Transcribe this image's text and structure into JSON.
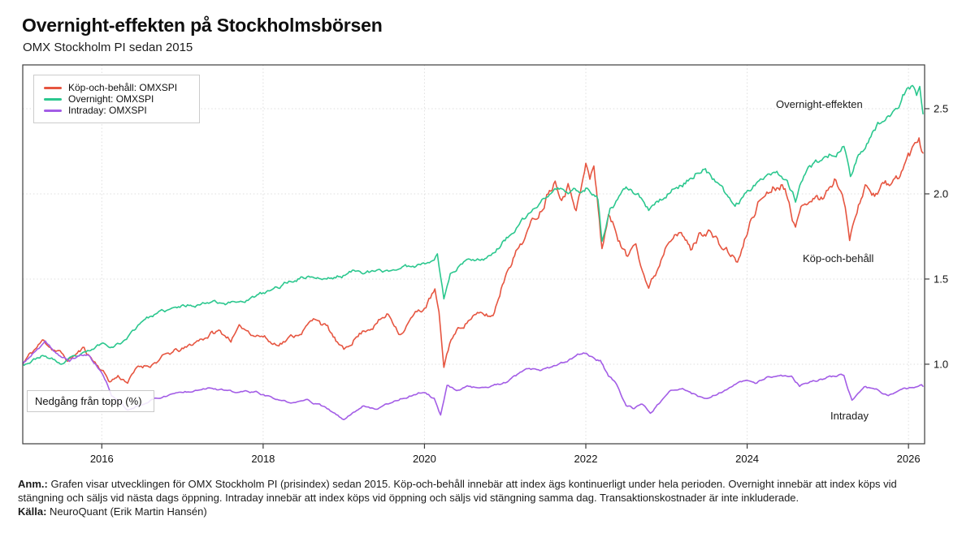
{
  "header": {
    "title": "Overnight-effekten på Stockholmsbörsen",
    "subtitle": "OMX Stockholm PI sedan 2015"
  },
  "annotations": {
    "overnight_label": "Overnight-effekten",
    "buyhold_label": "Köp-och-behåll",
    "intraday_label": "Intraday",
    "drawdown_box_label": "Nedgång från topp (%)"
  },
  "footnote": {
    "anm_label": "Anm.:",
    "line1": "Grafen visar utvecklingen för OMX Stockholm PI (prisindex) sedan 2015. Köp-och-behåll innebär att index ägs kontinuerligt under hela perioden. Overnight innebär att index köps vid",
    "line2": "stängning och säljs vid nästa dags öppning. Intraday innebär att index köps vid öppning och säljs vid stängning samma dag. Transaktionskostnader är inte inkluderade.",
    "source_label": "Källa:",
    "source_text": "NeuroQuant (Erik Martin Hansén)"
  },
  "chart_data": {
    "type": "line",
    "title": "Overnight-effekten på Stockholmsbörsen",
    "subtitle": "OMX Stockholm PI sedan 2015",
    "xlabel": "",
    "ylabel": "",
    "xlim": [
      2015.02,
      2026.2
    ],
    "ylim": [
      0.533,
      2.757
    ],
    "x_ticks": [
      2016,
      2018,
      2020,
      2022,
      2024,
      2026
    ],
    "y_ticks": [
      {
        "v": 1.0,
        "label": "1.0"
      },
      {
        "v": 1.5,
        "label": "1.5"
      },
      {
        "v": 2.0,
        "label": "2.0"
      },
      {
        "v": 2.5,
        "label": "2.5"
      }
    ],
    "grid": "dotted",
    "y_axis_side": "right",
    "legend_position": "top-left-inside",
    "frame_color": "#3c3c3c",
    "series": [
      {
        "id": "buyhold",
        "name": "Köp-och-behåll: OMXSPI",
        "color": "#e65540",
        "seed": 11,
        "noise_amp": 0.011,
        "noise_decay": 0.82,
        "noise_freq": 56,
        "points": [
          [
            2015.02,
            1.0
          ],
          [
            2015.08,
            1.04
          ],
          [
            2015.18,
            1.09
          ],
          [
            2015.28,
            1.14
          ],
          [
            2015.38,
            1.1
          ],
          [
            2015.5,
            1.06
          ],
          [
            2015.58,
            1.02
          ],
          [
            2015.68,
            1.06
          ],
          [
            2015.78,
            1.09
          ],
          [
            2015.9,
            1.02
          ],
          [
            2016.0,
            0.97
          ],
          [
            2016.1,
            0.9
          ],
          [
            2016.2,
            0.93
          ],
          [
            2016.32,
            0.9
          ],
          [
            2016.45,
            0.98
          ],
          [
            2016.6,
            1.0
          ],
          [
            2016.75,
            1.04
          ],
          [
            2016.9,
            1.07
          ],
          [
            2017.05,
            1.09
          ],
          [
            2017.2,
            1.14
          ],
          [
            2017.35,
            1.18
          ],
          [
            2017.45,
            1.19
          ],
          [
            2017.6,
            1.15
          ],
          [
            2017.72,
            1.21
          ],
          [
            2017.85,
            1.19
          ],
          [
            2018.0,
            1.17
          ],
          [
            2018.12,
            1.12
          ],
          [
            2018.25,
            1.14
          ],
          [
            2018.4,
            1.17
          ],
          [
            2018.55,
            1.23
          ],
          [
            2018.68,
            1.27
          ],
          [
            2018.8,
            1.21
          ],
          [
            2018.92,
            1.12
          ],
          [
            2019.0,
            1.07
          ],
          [
            2019.12,
            1.15
          ],
          [
            2019.25,
            1.2
          ],
          [
            2019.45,
            1.26
          ],
          [
            2019.55,
            1.29
          ],
          [
            2019.7,
            1.19
          ],
          [
            2019.85,
            1.28
          ],
          [
            2020.0,
            1.33
          ],
          [
            2020.13,
            1.43
          ],
          [
            2020.18,
            1.28
          ],
          [
            2020.24,
            0.98
          ],
          [
            2020.33,
            1.15
          ],
          [
            2020.45,
            1.22
          ],
          [
            2020.6,
            1.29
          ],
          [
            2020.75,
            1.28
          ],
          [
            2020.85,
            1.28
          ],
          [
            2020.95,
            1.45
          ],
          [
            2021.05,
            1.6
          ],
          [
            2021.15,
            1.68
          ],
          [
            2021.3,
            1.8
          ],
          [
            2021.45,
            1.92
          ],
          [
            2021.55,
            2.05
          ],
          [
            2021.62,
            2.1
          ],
          [
            2021.7,
            2.02
          ],
          [
            2021.78,
            2.07
          ],
          [
            2021.88,
            1.95
          ],
          [
            2021.95,
            2.05
          ],
          [
            2022.0,
            2.18
          ],
          [
            2022.05,
            2.08
          ],
          [
            2022.1,
            2.16
          ],
          [
            2022.2,
            1.68
          ],
          [
            2022.28,
            1.88
          ],
          [
            2022.4,
            1.75
          ],
          [
            2022.52,
            1.62
          ],
          [
            2022.62,
            1.74
          ],
          [
            2022.7,
            1.58
          ],
          [
            2022.78,
            1.46
          ],
          [
            2022.88,
            1.55
          ],
          [
            2023.0,
            1.72
          ],
          [
            2023.1,
            1.82
          ],
          [
            2023.2,
            1.76
          ],
          [
            2023.3,
            1.67
          ],
          [
            2023.42,
            1.77
          ],
          [
            2023.52,
            1.8
          ],
          [
            2023.65,
            1.7
          ],
          [
            2023.78,
            1.65
          ],
          [
            2023.88,
            1.6
          ],
          [
            2023.95,
            1.68
          ],
          [
            2024.05,
            1.85
          ],
          [
            2024.15,
            1.96
          ],
          [
            2024.3,
            2.04
          ],
          [
            2024.42,
            2.08
          ],
          [
            2024.52,
            2.0
          ],
          [
            2024.6,
            1.82
          ],
          [
            2024.7,
            1.95
          ],
          [
            2024.8,
            2.0
          ],
          [
            2024.9,
            1.97
          ],
          [
            2025.0,
            2.02
          ],
          [
            2025.1,
            2.08
          ],
          [
            2025.18,
            2.02
          ],
          [
            2025.27,
            1.74
          ],
          [
            2025.38,
            1.97
          ],
          [
            2025.48,
            2.06
          ],
          [
            2025.58,
            2.01
          ],
          [
            2025.68,
            2.07
          ],
          [
            2025.78,
            2.04
          ],
          [
            2025.88,
            2.1
          ],
          [
            2025.98,
            2.2
          ],
          [
            2026.08,
            2.28
          ],
          [
            2026.13,
            2.34
          ],
          [
            2026.18,
            2.24
          ]
        ]
      },
      {
        "id": "overnight",
        "name": "Overnight: OMXSPI",
        "color": "#2bc78e",
        "seed": 23,
        "noise_amp": 0.0065,
        "noise_decay": 0.82,
        "noise_freq": 56,
        "points": [
          [
            2015.02,
            1.0
          ],
          [
            2015.12,
            1.02
          ],
          [
            2015.25,
            1.05
          ],
          [
            2015.38,
            1.03
          ],
          [
            2015.5,
            1.0
          ],
          [
            2015.62,
            1.03
          ],
          [
            2015.75,
            1.05
          ],
          [
            2015.88,
            1.08
          ],
          [
            2016.0,
            1.12
          ],
          [
            2016.12,
            1.11
          ],
          [
            2016.25,
            1.13
          ],
          [
            2016.4,
            1.2
          ],
          [
            2016.52,
            1.27
          ],
          [
            2016.65,
            1.29
          ],
          [
            2016.8,
            1.31
          ],
          [
            2016.95,
            1.33
          ],
          [
            2017.1,
            1.35
          ],
          [
            2017.25,
            1.36
          ],
          [
            2017.4,
            1.38
          ],
          [
            2017.55,
            1.36
          ],
          [
            2017.7,
            1.37
          ],
          [
            2017.85,
            1.39
          ],
          [
            2018.0,
            1.41
          ],
          [
            2018.15,
            1.44
          ],
          [
            2018.3,
            1.48
          ],
          [
            2018.45,
            1.51
          ],
          [
            2018.6,
            1.52
          ],
          [
            2018.75,
            1.5
          ],
          [
            2018.9,
            1.51
          ],
          [
            2019.05,
            1.53
          ],
          [
            2019.2,
            1.56
          ],
          [
            2019.35,
            1.54
          ],
          [
            2019.5,
            1.54
          ],
          [
            2019.65,
            1.56
          ],
          [
            2019.8,
            1.57
          ],
          [
            2019.95,
            1.59
          ],
          [
            2020.08,
            1.62
          ],
          [
            2020.16,
            1.65
          ],
          [
            2020.24,
            1.39
          ],
          [
            2020.32,
            1.53
          ],
          [
            2020.45,
            1.59
          ],
          [
            2020.6,
            1.62
          ],
          [
            2020.75,
            1.63
          ],
          [
            2020.88,
            1.67
          ],
          [
            2021.0,
            1.73
          ],
          [
            2021.12,
            1.79
          ],
          [
            2021.25,
            1.85
          ],
          [
            2021.4,
            1.93
          ],
          [
            2021.55,
            2.0
          ],
          [
            2021.65,
            2.03
          ],
          [
            2021.78,
            2.0
          ],
          [
            2021.9,
            2.02
          ],
          [
            2022.0,
            2.04
          ],
          [
            2022.08,
            2.0
          ],
          [
            2022.15,
            1.97
          ],
          [
            2022.2,
            1.73
          ],
          [
            2022.3,
            1.9
          ],
          [
            2022.45,
            1.99
          ],
          [
            2022.55,
            2.02
          ],
          [
            2022.65,
            1.98
          ],
          [
            2022.78,
            1.9
          ],
          [
            2022.9,
            1.94
          ],
          [
            2023.05,
            2.02
          ],
          [
            2023.2,
            2.06
          ],
          [
            2023.32,
            2.1
          ],
          [
            2023.45,
            2.17
          ],
          [
            2023.55,
            2.1
          ],
          [
            2023.68,
            2.02
          ],
          [
            2023.85,
            1.93
          ],
          [
            2023.95,
            1.98
          ],
          [
            2024.08,
            2.06
          ],
          [
            2024.2,
            2.11
          ],
          [
            2024.35,
            2.14
          ],
          [
            2024.48,
            2.1
          ],
          [
            2024.6,
            1.97
          ],
          [
            2024.72,
            2.12
          ],
          [
            2024.85,
            2.18
          ],
          [
            2025.0,
            2.22
          ],
          [
            2025.12,
            2.26
          ],
          [
            2025.2,
            2.29
          ],
          [
            2025.28,
            2.1
          ],
          [
            2025.38,
            2.22
          ],
          [
            2025.5,
            2.32
          ],
          [
            2025.62,
            2.4
          ],
          [
            2025.75,
            2.47
          ],
          [
            2025.88,
            2.53
          ],
          [
            2025.98,
            2.62
          ],
          [
            2026.05,
            2.64
          ],
          [
            2026.1,
            2.56
          ],
          [
            2026.14,
            2.62
          ],
          [
            2026.18,
            2.47
          ]
        ]
      },
      {
        "id": "intraday",
        "name": "Intraday: OMXSPI",
        "color": "#a35de6",
        "seed": 37,
        "noise_amp": 0.006,
        "noise_decay": 0.82,
        "noise_freq": 56,
        "points": [
          [
            2015.02,
            1.0
          ],
          [
            2015.12,
            1.05
          ],
          [
            2015.22,
            1.09
          ],
          [
            2015.3,
            1.12
          ],
          [
            2015.4,
            1.08
          ],
          [
            2015.5,
            1.04
          ],
          [
            2015.6,
            1.02
          ],
          [
            2015.72,
            1.05
          ],
          [
            2015.82,
            1.06
          ],
          [
            2015.92,
            1.0
          ],
          [
            2016.02,
            0.93
          ],
          [
            2016.12,
            0.82
          ],
          [
            2016.22,
            0.78
          ],
          [
            2016.32,
            0.73
          ],
          [
            2016.45,
            0.76
          ],
          [
            2016.6,
            0.79
          ],
          [
            2016.75,
            0.81
          ],
          [
            2016.9,
            0.83
          ],
          [
            2017.05,
            0.84
          ],
          [
            2017.2,
            0.86
          ],
          [
            2017.35,
            0.87
          ],
          [
            2017.5,
            0.85
          ],
          [
            2017.65,
            0.83
          ],
          [
            2017.8,
            0.84
          ],
          [
            2017.95,
            0.83
          ],
          [
            2018.1,
            0.8
          ],
          [
            2018.25,
            0.78
          ],
          [
            2018.4,
            0.77
          ],
          [
            2018.55,
            0.79
          ],
          [
            2018.7,
            0.76
          ],
          [
            2018.85,
            0.72
          ],
          [
            2019.0,
            0.67
          ],
          [
            2019.12,
            0.72
          ],
          [
            2019.25,
            0.76
          ],
          [
            2019.4,
            0.74
          ],
          [
            2019.55,
            0.77
          ],
          [
            2019.7,
            0.8
          ],
          [
            2019.85,
            0.82
          ],
          [
            2020.0,
            0.84
          ],
          [
            2020.12,
            0.8
          ],
          [
            2020.2,
            0.7
          ],
          [
            2020.28,
            0.88
          ],
          [
            2020.4,
            0.85
          ],
          [
            2020.55,
            0.87
          ],
          [
            2020.7,
            0.86
          ],
          [
            2020.85,
            0.87
          ],
          [
            2021.0,
            0.89
          ],
          [
            2021.15,
            0.93
          ],
          [
            2021.3,
            0.97
          ],
          [
            2021.45,
            0.96
          ],
          [
            2021.6,
            0.98
          ],
          [
            2021.75,
            1.01
          ],
          [
            2021.88,
            1.05
          ],
          [
            2021.97,
            1.07
          ],
          [
            2022.08,
            1.04
          ],
          [
            2022.18,
            1.02
          ],
          [
            2022.28,
            0.93
          ],
          [
            2022.38,
            0.88
          ],
          [
            2022.5,
            0.76
          ],
          [
            2022.6,
            0.74
          ],
          [
            2022.7,
            0.76
          ],
          [
            2022.8,
            0.72
          ],
          [
            2022.92,
            0.78
          ],
          [
            2023.05,
            0.84
          ],
          [
            2023.2,
            0.85
          ],
          [
            2023.35,
            0.82
          ],
          [
            2023.5,
            0.79
          ],
          [
            2023.65,
            0.83
          ],
          [
            2023.8,
            0.86
          ],
          [
            2023.95,
            0.9
          ],
          [
            2024.1,
            0.89
          ],
          [
            2024.25,
            0.92
          ],
          [
            2024.4,
            0.93
          ],
          [
            2024.55,
            0.92
          ],
          [
            2024.65,
            0.87
          ],
          [
            2024.8,
            0.9
          ],
          [
            2024.95,
            0.92
          ],
          [
            2025.1,
            0.93
          ],
          [
            2025.2,
            0.94
          ],
          [
            2025.3,
            0.79
          ],
          [
            2025.45,
            0.86
          ],
          [
            2025.6,
            0.85
          ],
          [
            2025.75,
            0.82
          ],
          [
            2025.9,
            0.84
          ],
          [
            2026.05,
            0.86
          ],
          [
            2026.18,
            0.87
          ]
        ]
      }
    ]
  }
}
